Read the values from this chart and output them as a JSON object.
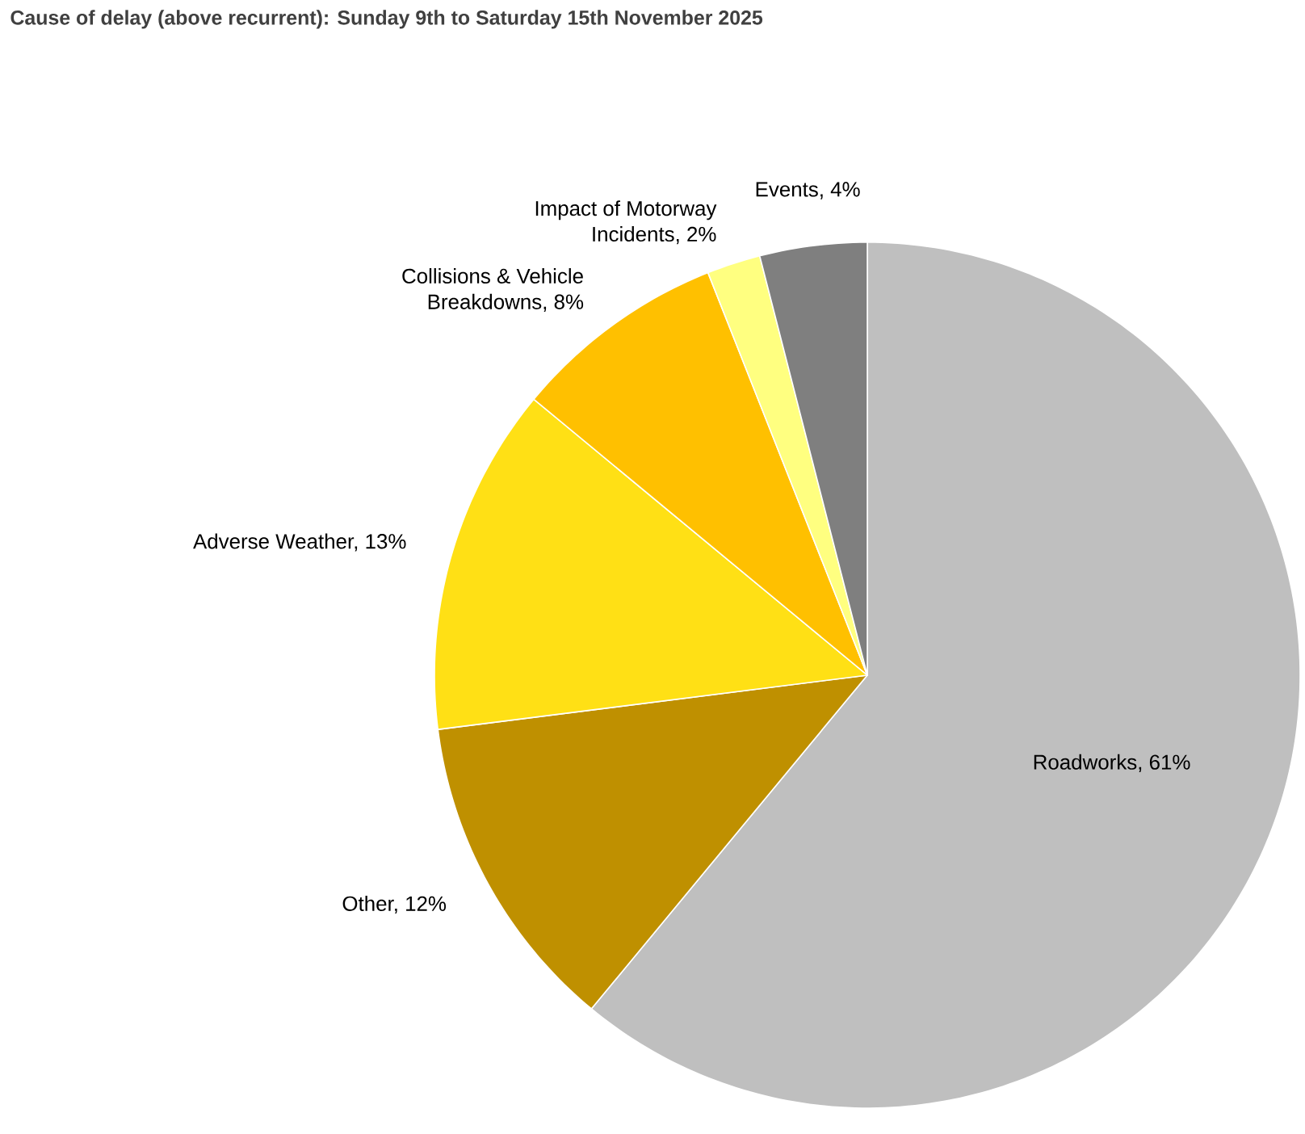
{
  "chart_data": {
    "type": "pie",
    "title": "Cause of delay (above recurrent): Sunday 9th to Saturday 15th November 2025",
    "categories": [
      "Roadworks, 61%",
      "Other, 12%",
      "Adverse Weather, 13%",
      "Collisions & Vehicle Breakdowns, 8%",
      "Impact of Motorway Incidents, 2%",
      "Events, 4%"
    ],
    "values": [
      61,
      12,
      13,
      8,
      2,
      4
    ],
    "colors": [
      "#bfbfbf",
      "#bf9000",
      "#ffe015",
      "#ffc000",
      "#ffff80",
      "#7f7f7f"
    ]
  }
}
